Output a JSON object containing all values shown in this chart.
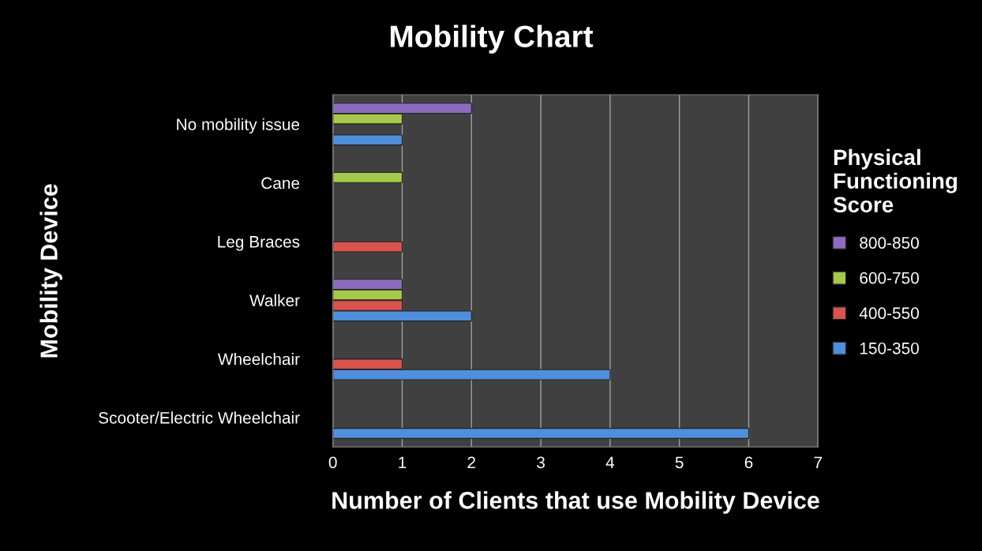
{
  "chart_data": {
    "type": "bar",
    "orientation": "horizontal",
    "title": "Mobility Chart",
    "xlabel": "Number of Clients that use Mobility Device",
    "ylabel": "Mobility Device",
    "legend_title": "Physical Functioning Score",
    "categories": [
      "No mobility issue",
      "Cane",
      "Leg Braces",
      "Walker",
      "Wheelchair",
      "Scooter/Electric Wheelchair"
    ],
    "series": [
      {
        "name": "150-350",
        "color": "#4f8fdc",
        "values": [
          1,
          null,
          null,
          2,
          4,
          6
        ]
      },
      {
        "name": "400-550",
        "color": "#d9534f",
        "values": [
          null,
          null,
          1,
          1,
          1,
          null
        ]
      },
      {
        "name": "600-750",
        "color": "#a5c94a",
        "values": [
          1,
          1,
          null,
          1,
          null,
          null
        ]
      },
      {
        "name": "800-850",
        "color": "#8d6cc0",
        "values": [
          2,
          null,
          null,
          1,
          null,
          null
        ]
      }
    ],
    "xlim": [
      0,
      7
    ],
    "xticks": [
      0,
      1,
      2,
      3,
      4,
      5,
      6,
      7
    ],
    "grid": "x",
    "legend": "right"
  }
}
